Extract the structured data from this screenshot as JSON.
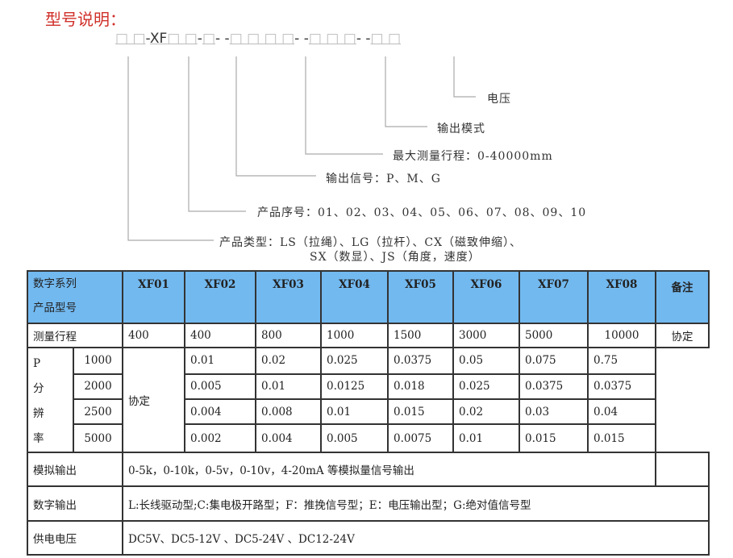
{
  "title": "型号说明：",
  "model_code": {
    "g1": "□ □",
    "sep1": "-",
    "xf": "XF",
    "g2": "□ □",
    "sep2": "-",
    "g3": "□",
    "sep3": "- -",
    "g4": "□ □ □ □",
    "sep4": "- -",
    "g5": "□ □ □",
    "sep5": "- -",
    "g6": "□ □"
  },
  "legend": {
    "voltage": "电压",
    "output_mode": "输出模式",
    "max_stroke": "最大测量行程：0-40000mm",
    "output_signal": "输出信号：P、M、G",
    "product_no": "产品序号：01、02、03、04、05、06、07、08、09、10",
    "product_type_1": "产品类型：LS（拉绳）、LG（拉杆）、CX（磁致伸缩）、",
    "product_type_2": "SX（数显）、JS（角度，速度）"
  },
  "colors": {
    "header_bg": "#72b9f0",
    "title": "#d0302a"
  },
  "table": {
    "header_l1": "数字系列",
    "header_l2": "产品型号",
    "models": [
      "XF01",
      "XF02",
      "XF03",
      "XF04",
      "XF05",
      "XF06",
      "XF07",
      "XF08"
    ],
    "remark": "备注",
    "stroke_label": "测量行程",
    "stroke": [
      "400",
      "400",
      "800",
      "1000",
      "1500",
      "3000",
      "5000",
      "10000"
    ],
    "res_label": [
      "P",
      "分",
      "辨",
      "率"
    ],
    "res_rows": [
      {
        "ppr": "1000",
        "values": [
          "0.01",
          "0.02",
          "0.025",
          "0.0375",
          "0.05",
          "0.075",
          "0.75"
        ]
      },
      {
        "ppr": "2000",
        "values": [
          "0.005",
          "0.01",
          "0.0125",
          "0.018",
          "0.025",
          "0.0375",
          "0.0375"
        ]
      },
      {
        "ppr": "2500",
        "values": [
          "0.004",
          "0.008",
          "0.01",
          "0.015",
          "0.02",
          "0.03",
          "0.04"
        ]
      },
      {
        "ppr": "5000",
        "values": [
          "0.002",
          "0.004",
          "0.005",
          "0.0075",
          "0.01",
          "0.015",
          "0.015"
        ]
      }
    ],
    "xf01_res": "协定",
    "remark_value": "协定",
    "analog_label": "模拟输出",
    "analog": "0-5k，0-10k，0-5v，0-10v，4-20mA 等模拟量信号输出",
    "digital_label": "数字输出",
    "digital": "L:长线驱动型;C:集电极开路型；F：推挽信号型；E：电压输出型；G:绝对值信号型",
    "power_label": "供电电压",
    "power": "DC5V、DC5-12V 、DC5-24V 、DC12-24V"
  }
}
